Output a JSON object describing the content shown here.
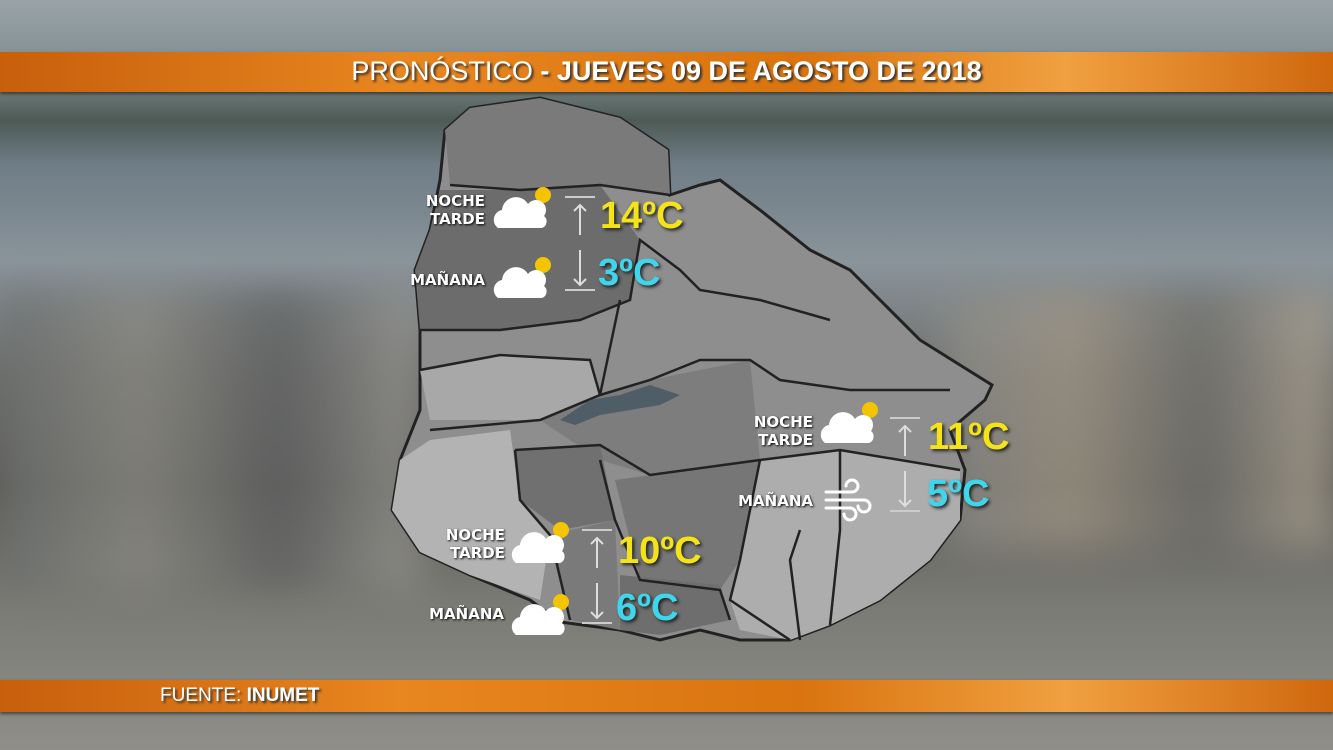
{
  "header": {
    "title_prefix": "PRONÓSTICO",
    "title_main": "- JUEVES 09 DE AGOSTO DE 2018"
  },
  "footer": {
    "source_label": "FUENTE:",
    "source_value": "INUMET"
  },
  "colors": {
    "band": "#e07a14",
    "max_temp": "#f5e31a",
    "min_temp": "#3fd6ec"
  },
  "forecasts": [
    {
      "region": "north",
      "label_top": "NOCHE",
      "label_bottom": "TARDE",
      "max": "14ºC",
      "min_label": "MAÑANA",
      "min": "3ºC",
      "icon_max": "partly-cloudy-icon",
      "icon_min": "partly-cloudy-icon"
    },
    {
      "region": "east",
      "label_top": "NOCHE",
      "label_bottom": "TARDE",
      "max": "11ºC",
      "min_label": "MAÑANA",
      "min": "5ºC",
      "icon_max": "partly-cloudy-icon",
      "icon_min": "wind-icon"
    },
    {
      "region": "south-west",
      "label_top": "NOCHE",
      "label_bottom": "TARDE",
      "max": "10ºC",
      "min_label": "MAÑANA",
      "min": "6ºC",
      "icon_max": "partly-cloudy-icon",
      "icon_min": "partly-cloudy-icon"
    }
  ]
}
